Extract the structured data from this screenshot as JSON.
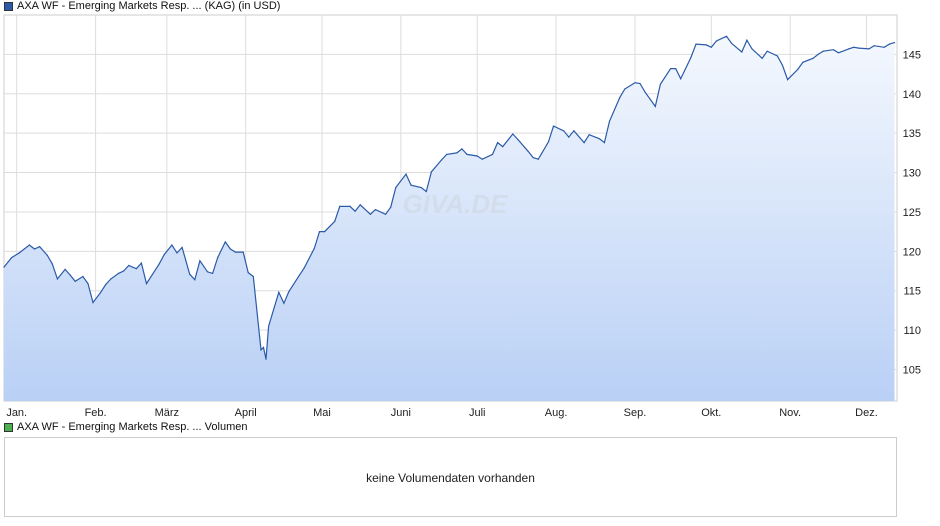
{
  "legend": {
    "price_label": "AXA WF - Emerging Markets Resp. ... (KAG) (in USD)",
    "price_color": "#2b5aa8",
    "volume_label": "AXA WF - Emerging Markets Resp. ... Volumen",
    "volume_color": "#4caf50"
  },
  "watermark": "GIVA.DE",
  "volume_panel": {
    "message": "keine Volumendaten vorhanden"
  },
  "chart_data": {
    "type": "area",
    "title": "",
    "xlabel": "",
    "ylabel": "",
    "ylim": [
      101,
      150
    ],
    "yticks": [
      105,
      110,
      115,
      120,
      125,
      130,
      135,
      140,
      145
    ],
    "grid": true,
    "y_axis_position": "right",
    "x_month_labels": [
      "Jan.",
      "Feb.",
      "März",
      "April",
      "Mai",
      "Juni",
      "Juli",
      "Aug.",
      "Sep.",
      "Okt.",
      "Nov.",
      "Dez."
    ],
    "line_color": "#2b5aa8",
    "fill_top_color": "#f4f8fe",
    "fill_bottom_color": "#b9d0f5",
    "series": [
      {
        "x": [
          "2024-12-27",
          "2024-12-30",
          "2025-01-02",
          "2025-01-06",
          "2025-01-08",
          "2025-01-10",
          "2025-01-13",
          "2025-01-15",
          "2025-01-17",
          "2025-01-20",
          "2025-01-22",
          "2025-01-24",
          "2025-01-27",
          "2025-01-29",
          "2025-01-31",
          "2025-02-03",
          "2025-02-05",
          "2025-02-07",
          "2025-02-10",
          "2025-02-12",
          "2025-02-14",
          "2025-02-17",
          "2025-02-19",
          "2025-02-21",
          "2025-02-24",
          "2025-02-26",
          "2025-02-28",
          "2025-03-03",
          "2025-03-05",
          "2025-03-07",
          "2025-03-10",
          "2025-03-12",
          "2025-03-14",
          "2025-03-17",
          "2025-03-19",
          "2025-03-21",
          "2025-03-24",
          "2025-03-26",
          "2025-03-28",
          "2025-03-31",
          "2025-04-02",
          "2025-04-04",
          "2025-04-07",
          "2025-04-08",
          "2025-04-09",
          "2025-04-10",
          "2025-04-14",
          "2025-04-16",
          "2025-04-18",
          "2025-04-22",
          "2025-04-24",
          "2025-04-28",
          "2025-04-30",
          "2025-05-02",
          "2025-05-06",
          "2025-05-08",
          "2025-05-12",
          "2025-05-14",
          "2025-05-16",
          "2025-05-20",
          "2025-05-22",
          "2025-05-26",
          "2025-05-28",
          "2025-05-30",
          "2025-06-03",
          "2025-06-05",
          "2025-06-09",
          "2025-06-11",
          "2025-06-13",
          "2025-06-17",
          "2025-06-19",
          "2025-06-23",
          "2025-06-25",
          "2025-06-27",
          "2025-07-01",
          "2025-07-03",
          "2025-07-07",
          "2025-07-09",
          "2025-07-11",
          "2025-07-15",
          "2025-07-17",
          "2025-07-21",
          "2025-07-23",
          "2025-07-25",
          "2025-07-29",
          "2025-07-31",
          "2025-08-04",
          "2025-08-06",
          "2025-08-08",
          "2025-08-12",
          "2025-08-14",
          "2025-08-18",
          "2025-08-20",
          "2025-08-22",
          "2025-08-26",
          "2025-08-28",
          "2025-09-01",
          "2025-09-03",
          "2025-09-05",
          "2025-09-09",
          "2025-09-11",
          "2025-09-15",
          "2025-09-17",
          "2025-09-19",
          "2025-09-23",
          "2025-09-25",
          "2025-09-29",
          "2025-10-01",
          "2025-10-03",
          "2025-10-07",
          "2025-10-09",
          "2025-10-13",
          "2025-10-15",
          "2025-10-17",
          "2025-10-21",
          "2025-10-23",
          "2025-10-27",
          "2025-10-29",
          "2025-10-31",
          "2025-11-04",
          "2025-11-06",
          "2025-11-10",
          "2025-11-12",
          "2025-11-14",
          "2025-11-18",
          "2025-11-20",
          "2025-11-24",
          "2025-11-26",
          "2025-11-28",
          "2025-12-02",
          "2025-12-04",
          "2025-12-08",
          "2025-12-10",
          "2025-12-12"
        ],
        "values": [
          118,
          119.2,
          119.8,
          120.8,
          120.3,
          120.6,
          119.5,
          118.4,
          116.5,
          117.7,
          117,
          116.2,
          116.8,
          115.9,
          113.5,
          114.8,
          115.8,
          116.5,
          117.2,
          117.5,
          118.2,
          117.8,
          118.5,
          115.9,
          117.4,
          118.4,
          119.6,
          120.8,
          119.8,
          120.5,
          117.1,
          116.4,
          118.8,
          117.4,
          117.2,
          119.2,
          121.2,
          120.3,
          119.9,
          119.9,
          117.3,
          116.8,
          107.5,
          107.8,
          106.3,
          110.5,
          114.8,
          113.4,
          114.9,
          116.9,
          117.9,
          120.4,
          122.5,
          122.5,
          123.8,
          125.7,
          125.7,
          125.1,
          125.9,
          124.7,
          125.3,
          124.7,
          125.6,
          128.1,
          129.8,
          128.4,
          128.1,
          127.6,
          130.1,
          131.6,
          132.3,
          132.5,
          133,
          132.3,
          132.1,
          131.7,
          132.3,
          133.8,
          133.3,
          134.9,
          134.2,
          132.7,
          131.9,
          131.7,
          133.9,
          135.9,
          135.3,
          134.5,
          135.3,
          133.8,
          134.8,
          134.3,
          133.8,
          136.5,
          139.5,
          140.6,
          141.4,
          141.3,
          140.2,
          138.4,
          141.2,
          143.2,
          143.2,
          141.9,
          144.6,
          146.3,
          146.2,
          145.9,
          146.7,
          147.3,
          146.4,
          145.3,
          146.8,
          145.7,
          144.5,
          145.4,
          144.8,
          143.6,
          141.8,
          143.1,
          144,
          144.5,
          145,
          145.4,
          145.6,
          145.2,
          145.7,
          145.9,
          145.8,
          145.7,
          146.1,
          145.9,
          146.3,
          146.5
        ]
      }
    ]
  }
}
